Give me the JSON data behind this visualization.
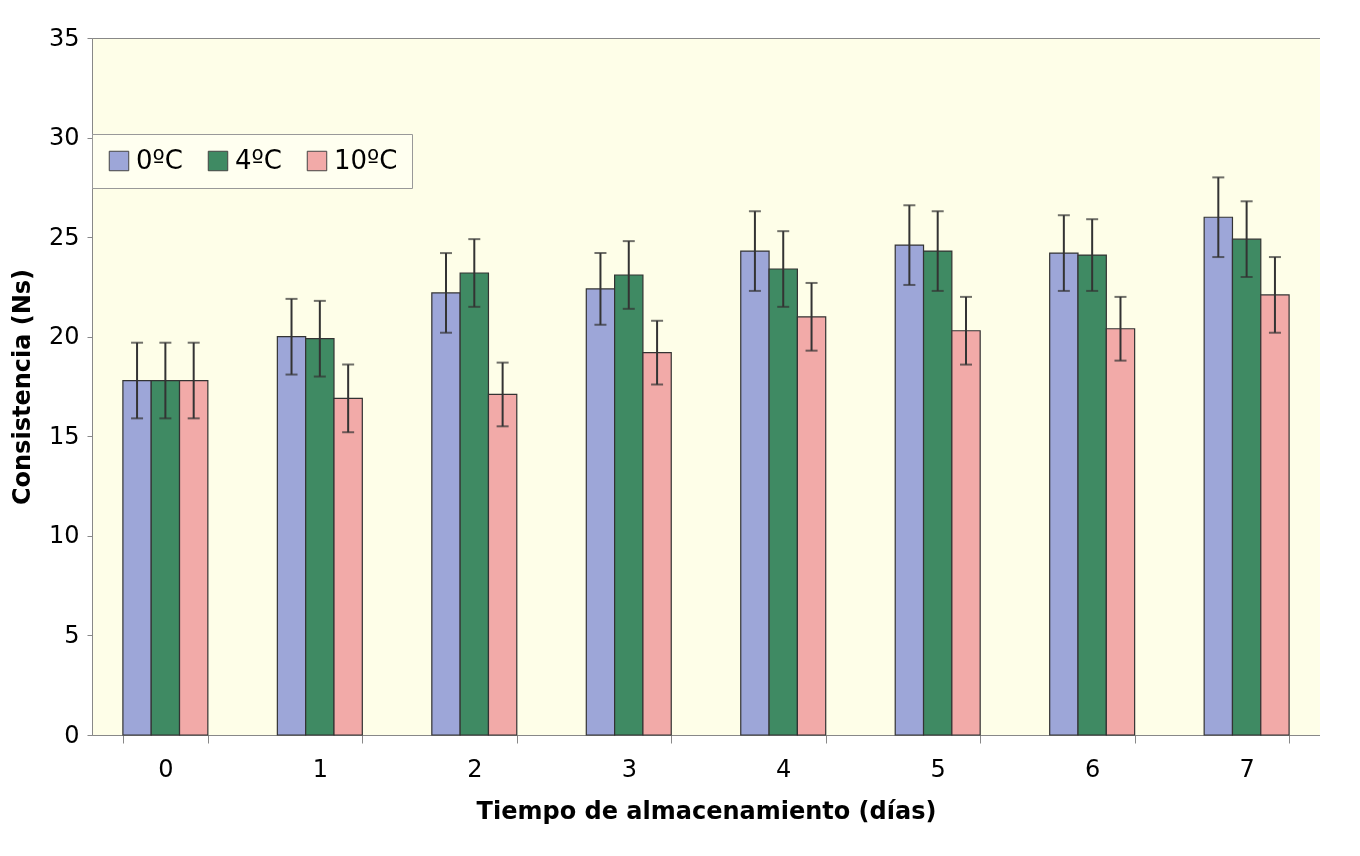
{
  "chart_data": {
    "type": "bar",
    "xlabel": "Tiempo de almacenamiento (días)",
    "ylabel": "Consistencia (Ns)",
    "categories": [
      "0",
      "1",
      "2",
      "3",
      "4",
      "5",
      "6",
      "7"
    ],
    "series": [
      {
        "name": "0ºC",
        "color": "#9da6d8",
        "values": [
          17.8,
          20.0,
          22.2,
          22.4,
          24.3,
          24.6,
          24.2,
          26.0
        ],
        "errors": [
          1.9,
          1.9,
          2.0,
          1.8,
          2.0,
          2.0,
          1.9,
          2.0
        ]
      },
      {
        "name": "4ºC",
        "color": "#3f8a63",
        "values": [
          17.8,
          19.9,
          23.2,
          23.1,
          23.4,
          24.3,
          24.1,
          24.9
        ],
        "errors": [
          1.9,
          1.9,
          1.7,
          1.7,
          1.9,
          2.0,
          1.8,
          1.9
        ]
      },
      {
        "name": "10ºC",
        "color": "#f2aaa8",
        "values": [
          17.8,
          16.9,
          17.1,
          19.2,
          21.0,
          20.3,
          20.4,
          22.1
        ],
        "errors": [
          1.9,
          1.7,
          1.6,
          1.6,
          1.7,
          1.7,
          1.6,
          1.9
        ]
      }
    ],
    "ylim": [
      0,
      35
    ],
    "yticks": [
      0,
      5,
      10,
      15,
      20,
      25,
      30,
      35
    ],
    "grid": false,
    "legend": "top"
  }
}
